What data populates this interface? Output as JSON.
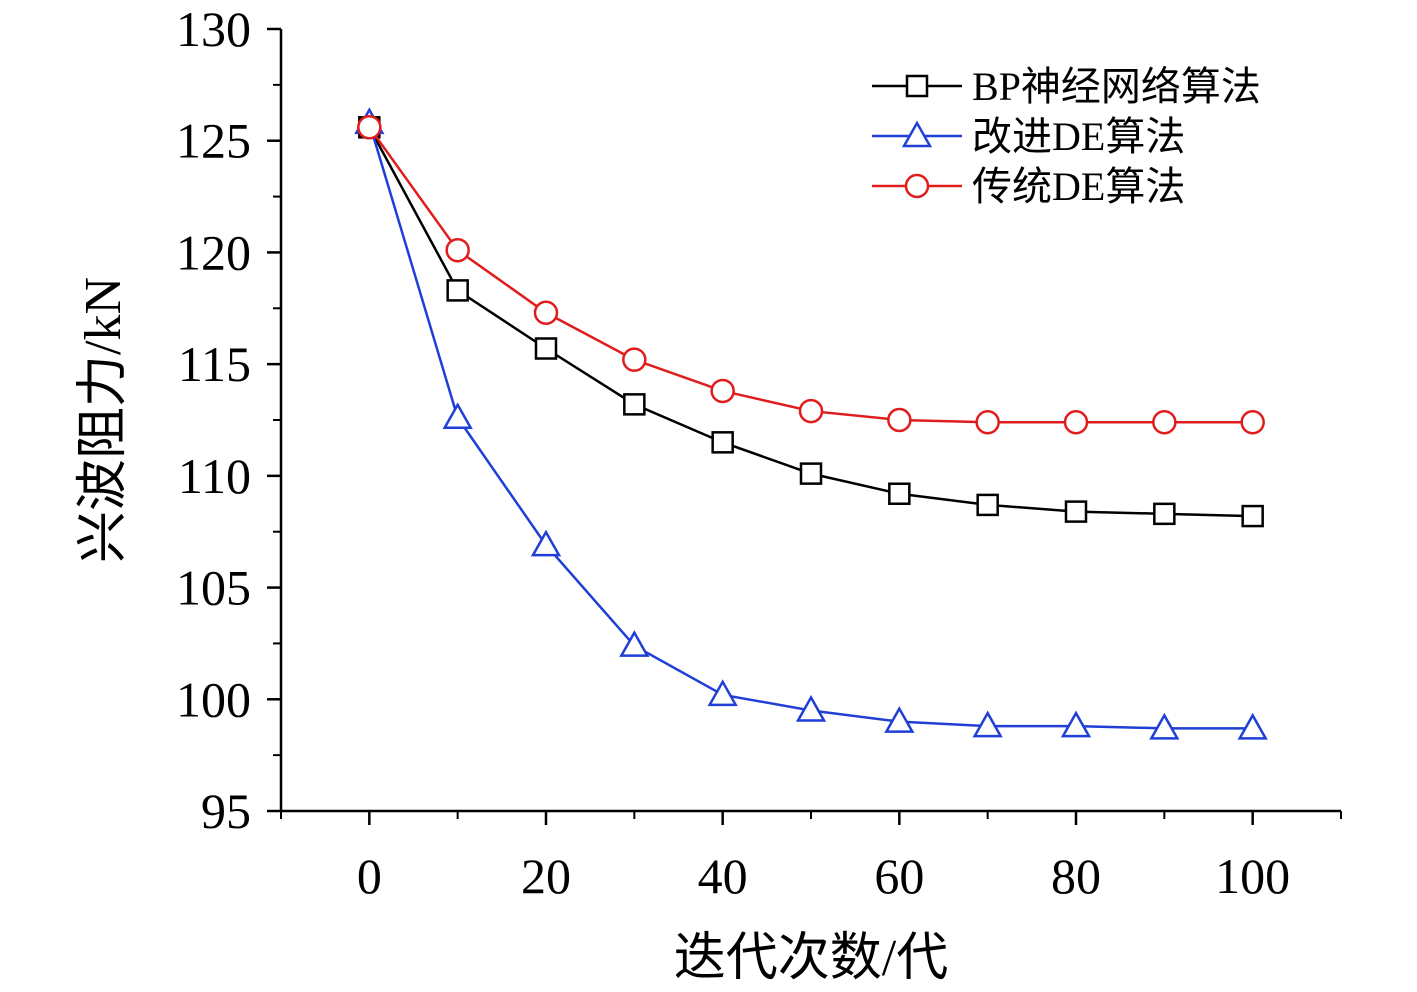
{
  "chart_data": {
    "type": "line",
    "title": "",
    "xlabel": "迭代次数/代",
    "ylabel": "兴波阻力/kN",
    "xlim": [
      -10,
      110
    ],
    "ylim": [
      95,
      130
    ],
    "xticks": [
      "0",
      "20",
      "40",
      "60",
      "80",
      "100"
    ],
    "yticks": [
      "95",
      "100",
      "105",
      "110",
      "115",
      "120",
      "125",
      "130"
    ],
    "legend_position": "top-right",
    "x": [
      0,
      10,
      20,
      30,
      40,
      50,
      60,
      70,
      80,
      90,
      100
    ],
    "series": [
      {
        "name": "BP神经网络算法",
        "color": "#000000",
        "marker": "square",
        "values": [
          125.6,
          118.3,
          115.7,
          113.2,
          111.5,
          110.1,
          109.2,
          108.7,
          108.4,
          108.3,
          108.2
        ]
      },
      {
        "name": "改进DE算法",
        "color": "#1f3fd6",
        "marker": "triangle",
        "values": [
          125.8,
          112.6,
          106.9,
          102.4,
          100.2,
          99.5,
          99.0,
          98.8,
          98.8,
          98.7,
          98.7
        ]
      },
      {
        "name": "传统DE算法",
        "color": "#e01c1c",
        "marker": "circle",
        "values": [
          125.6,
          120.1,
          117.3,
          115.2,
          113.8,
          112.9,
          112.5,
          112.4,
          112.4,
          112.4,
          112.4
        ]
      }
    ]
  }
}
